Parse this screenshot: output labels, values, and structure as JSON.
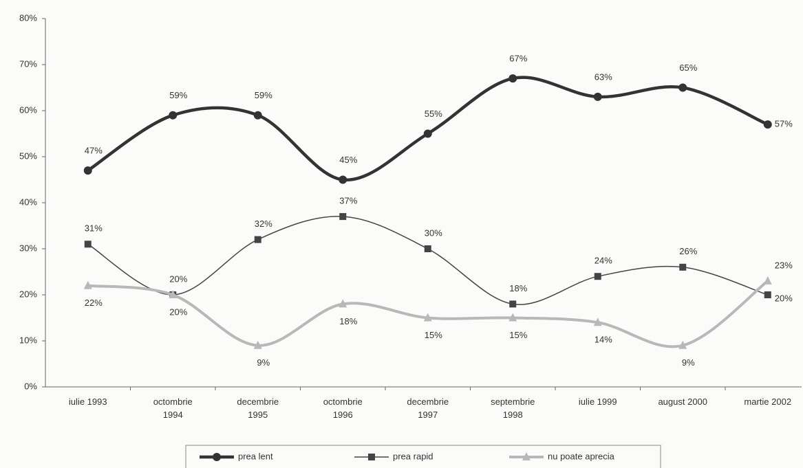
{
  "chart_data": {
    "type": "line",
    "categories": [
      "iulie 1993",
      "octombrie 1994",
      "decembrie 1995",
      "octombrie 1996",
      "decembrie 1997",
      "septembrie 1998",
      "iulie 1999",
      "august 2000",
      "martie 2002"
    ],
    "series": [
      {
        "name": "prea lent",
        "color": "#333333",
        "marker": "circle",
        "values": [
          47,
          59,
          59,
          45,
          55,
          67,
          63,
          65,
          57
        ],
        "value_labels": [
          "47%",
          "59%",
          "59%",
          "45%",
          "55%",
          "67%",
          "63%",
          "65%",
          "57%"
        ]
      },
      {
        "name": "prea rapid",
        "color": "#444444",
        "marker": "square",
        "values": [
          31,
          20,
          32,
          37,
          30,
          18,
          24,
          26,
          20
        ],
        "value_labels": [
          "31%",
          "20%",
          "32%",
          "37%",
          "30%",
          "18%",
          "24%",
          "26%",
          "20%"
        ]
      },
      {
        "name": "nu poate aprecia",
        "color": "#b8b8b8",
        "marker": "triangle",
        "values": [
          22,
          20,
          9,
          18,
          15,
          15,
          14,
          9,
          23
        ],
        "value_labels": [
          "22%",
          "20%",
          "9%",
          "18%",
          "15%",
          "15%",
          "14%",
          "9%",
          "23%"
        ]
      }
    ],
    "ylim": [
      0,
      80
    ],
    "yticks": [
      {
        "value": 0,
        "label": "0%"
      },
      {
        "value": 10,
        "label": "10%"
      },
      {
        "value": 20,
        "label": "20%"
      },
      {
        "value": 30,
        "label": "30%"
      },
      {
        "value": 40,
        "label": "40%"
      },
      {
        "value": 50,
        "label": "50%"
      },
      {
        "value": 60,
        "label": "60%"
      },
      {
        "value": 70,
        "label": "70%"
      },
      {
        "value": 80,
        "label": "80%"
      }
    ],
    "grid": false,
    "legend": "bottom"
  }
}
